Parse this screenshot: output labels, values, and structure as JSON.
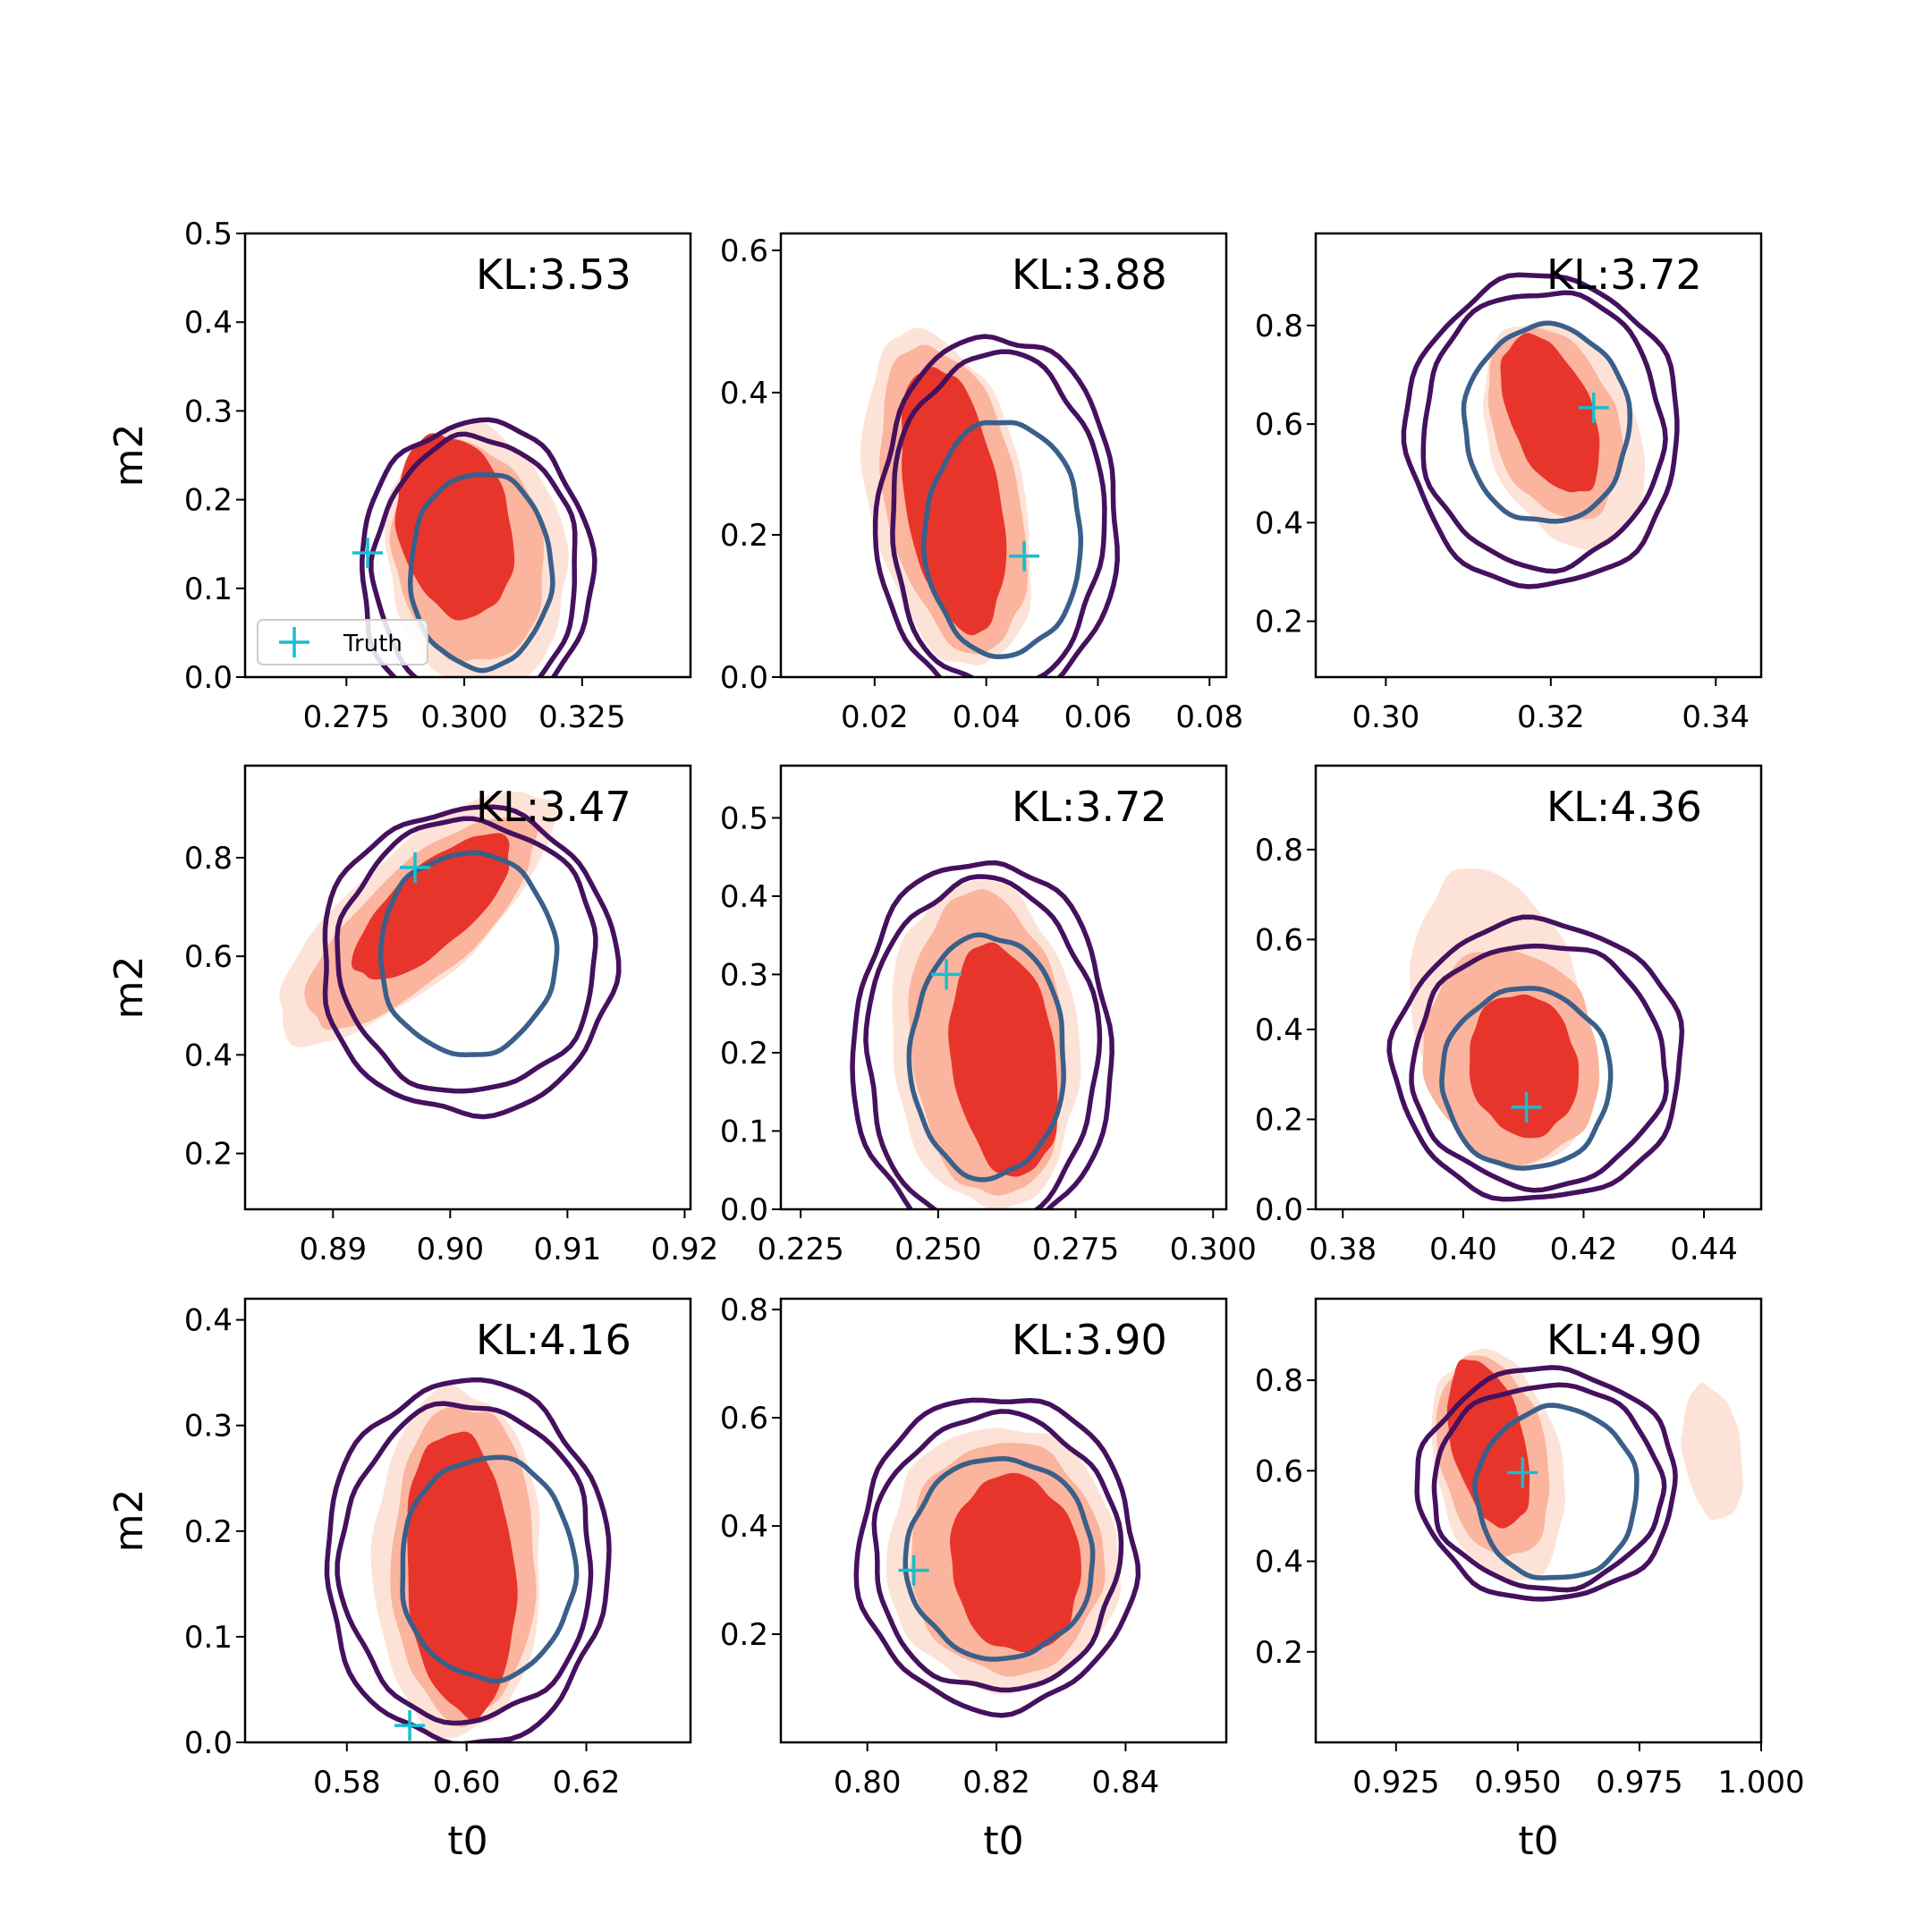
{
  "colors": {
    "fill_outer": "#fde3d7",
    "fill_middle": "#fbb49d",
    "fill_inner": "#e8352b",
    "contour_outer": "#45115e",
    "contour_inner": "#3a5f8a",
    "truth": "#17becf",
    "axes": "#000000"
  },
  "legend": {
    "label": "Truth",
    "icon": "plus-marker-icon"
  },
  "chart_data": [
    {
      "type": "contour",
      "kl": "KL:3.53",
      "xlabel": "",
      "ylabel": "m2",
      "xlim": [
        0.2535,
        0.348
      ],
      "ylim": [
        0.0,
        0.5
      ],
      "xticks": [
        {
          "v": 0.275,
          "t": "0.275"
        },
        {
          "v": 0.3,
          "t": "0.300"
        },
        {
          "v": 0.325,
          "t": "0.325"
        }
      ],
      "yticks": [
        {
          "v": 0.0,
          "t": "0.0"
        },
        {
          "v": 0.1,
          "t": "0.1"
        },
        {
          "v": 0.2,
          "t": "0.2"
        },
        {
          "v": 0.3,
          "t": "0.3"
        },
        {
          "v": 0.4,
          "t": "0.4"
        },
        {
          "v": 0.5,
          "t": "0.5"
        }
      ],
      "red": {
        "outer": {
          "cx": 0.3025,
          "cy": 0.135,
          "rx": 0.019,
          "ry": 0.15,
          "rot": -8
        },
        "middle": {
          "cx": 0.301,
          "cy": 0.14,
          "rx": 0.016,
          "ry": 0.125,
          "rot": -8
        },
        "inner": {
          "cx": 0.298,
          "cy": 0.17,
          "rx": 0.012,
          "ry": 0.105,
          "rot": -12
        }
      },
      "purple_outer": {
        "cx": 0.3025,
        "cy": 0.12,
        "rx": 0.0245,
        "ry": 0.168
      },
      "purple_middle": {
        "cx": 0.3025,
        "cy": 0.12,
        "rx": 0.0215,
        "ry": 0.15
      },
      "blue": {
        "cx": 0.3035,
        "cy": 0.12,
        "rx": 0.015,
        "ry": 0.11
      },
      "truth": {
        "x": 0.2795,
        "y": 0.14
      },
      "has_legend": true
    },
    {
      "type": "contour",
      "kl": "KL:3.88",
      "xlabel": "",
      "ylabel": "",
      "xlim": [
        0.0032,
        0.083
      ],
      "ylim": [
        0.0,
        0.6237
      ],
      "xticks": [
        {
          "v": 0.02,
          "t": "0.02"
        },
        {
          "v": 0.04,
          "t": "0.04"
        },
        {
          "v": 0.06,
          "t": "0.06"
        },
        {
          "v": 0.08,
          "t": "0.08"
        }
      ],
      "yticks": [
        {
          "v": 0.0,
          "t": "0.0"
        },
        {
          "v": 0.2,
          "t": "0.2"
        },
        {
          "v": 0.4,
          "t": "0.4"
        },
        {
          "v": 0.6,
          "t": "0.6"
        }
      ],
      "red": {
        "outer": {
          "cx": 0.033,
          "cy": 0.25,
          "rx": 0.014,
          "ry": 0.24,
          "rot": -12
        },
        "middle": {
          "cx": 0.034,
          "cy": 0.25,
          "rx": 0.012,
          "ry": 0.22,
          "rot": -12
        },
        "inner": {
          "cx": 0.034,
          "cy": 0.25,
          "rx": 0.0085,
          "ry": 0.19,
          "rot": -10
        }
      },
      "purple_outer": {
        "cx": 0.042,
        "cy": 0.22,
        "rx": 0.0215,
        "ry": 0.26
      },
      "purple_middle": {
        "cx": 0.042,
        "cy": 0.22,
        "rx": 0.019,
        "ry": 0.235
      },
      "blue": {
        "cx": 0.043,
        "cy": 0.195,
        "rx": 0.014,
        "ry": 0.165
      },
      "truth": {
        "x": 0.0468,
        "y": 0.17
      },
      "has_legend": false
    },
    {
      "type": "contour",
      "kl": "KL:3.72",
      "xlabel": "",
      "ylabel": "",
      "xlim": [
        0.2915,
        0.3455
      ],
      "ylim": [
        0.0867,
        0.9867
      ],
      "xticks": [
        {
          "v": 0.3,
          "t": "0.30"
        },
        {
          "v": 0.32,
          "t": "0.32"
        },
        {
          "v": 0.34,
          "t": "0.34"
        }
      ],
      "yticks": [
        {
          "v": 0.2,
          "t": "0.2"
        },
        {
          "v": 0.4,
          "t": "0.4"
        },
        {
          "v": 0.6,
          "t": "0.6"
        },
        {
          "v": 0.8,
          "t": "0.8"
        }
      ],
      "red": {
        "outer": {
          "cx": 0.3215,
          "cy": 0.58,
          "rx": 0.009,
          "ry": 0.24,
          "rot": -20
        },
        "middle": {
          "cx": 0.3205,
          "cy": 0.6,
          "rx": 0.0075,
          "ry": 0.2,
          "rot": -20
        },
        "inner": {
          "cx": 0.32,
          "cy": 0.62,
          "rx": 0.005,
          "ry": 0.17,
          "rot": -22
        }
      },
      "purple_outer": {
        "cx": 0.319,
        "cy": 0.585,
        "rx": 0.0165,
        "ry": 0.315
      },
      "purple_middle": {
        "cx": 0.319,
        "cy": 0.59,
        "rx": 0.0145,
        "ry": 0.28
      },
      "blue": {
        "cx": 0.3195,
        "cy": 0.6,
        "rx": 0.01,
        "ry": 0.2
      },
      "truth": {
        "x": 0.3252,
        "y": 0.633
      },
      "has_legend": false
    },
    {
      "type": "contour",
      "kl": "KL:3.47",
      "xlabel": "",
      "ylabel": "m2",
      "xlim": [
        0.8825,
        0.9205
      ],
      "ylim": [
        0.0867,
        0.9867
      ],
      "xticks": [
        {
          "v": 0.89,
          "t": "0.89"
        },
        {
          "v": 0.9,
          "t": "0.90"
        },
        {
          "v": 0.91,
          "t": "0.91"
        },
        {
          "v": 0.92,
          "t": "0.92"
        }
      ],
      "yticks": [
        {
          "v": 0.2,
          "t": "0.2"
        },
        {
          "v": 0.4,
          "t": "0.4"
        },
        {
          "v": 0.6,
          "t": "0.6"
        },
        {
          "v": 0.8,
          "t": "0.8"
        }
      ],
      "red": {
        "outer": {
          "cx": 0.897,
          "cy": 0.68,
          "rx": 0.015,
          "ry": 0.13,
          "rot": -42
        },
        "middle": {
          "cx": 0.8975,
          "cy": 0.67,
          "rx": 0.0125,
          "ry": 0.11,
          "rot": -42
        },
        "inner": {
          "cx": 0.8985,
          "cy": 0.7,
          "rx": 0.0085,
          "ry": 0.08,
          "rot": -42
        }
      },
      "purple_outer": {
        "cx": 0.9015,
        "cy": 0.59,
        "rx": 0.0125,
        "ry": 0.31
      },
      "purple_middle": {
        "cx": 0.9015,
        "cy": 0.6,
        "rx": 0.011,
        "ry": 0.275
      },
      "blue": {
        "cx": 0.9015,
        "cy": 0.605,
        "rx": 0.0075,
        "ry": 0.205
      },
      "truth": {
        "x": 0.897,
        "y": 0.78
      },
      "has_legend": false
    },
    {
      "type": "contour",
      "kl": "KL:3.72",
      "xlabel": "",
      "ylabel": "",
      "xlim": [
        0.2214,
        0.3024
      ],
      "ylim": [
        0.0,
        0.5667
      ],
      "xticks": [
        {
          "v": 0.225,
          "t": "0.225"
        },
        {
          "v": 0.25,
          "t": "0.250"
        },
        {
          "v": 0.275,
          "t": "0.275"
        },
        {
          "v": 0.3,
          "t": "0.300"
        }
      ],
      "yticks": [
        {
          "v": 0.0,
          "t": "0.0"
        },
        {
          "v": 0.1,
          "t": "0.1"
        },
        {
          "v": 0.2,
          "t": "0.2"
        },
        {
          "v": 0.3,
          "t": "0.3"
        },
        {
          "v": 0.4,
          "t": "0.4"
        },
        {
          "v": 0.5,
          "t": "0.5"
        }
      ],
      "red": {
        "outer": {
          "cx": 0.2585,
          "cy": 0.21,
          "rx": 0.017,
          "ry": 0.21,
          "rot": -5
        },
        "middle": {
          "cx": 0.259,
          "cy": 0.21,
          "rx": 0.014,
          "ry": 0.195,
          "rot": -5
        },
        "inner": {
          "cx": 0.262,
          "cy": 0.19,
          "rx": 0.0095,
          "ry": 0.15,
          "rot": -8
        }
      },
      "purple_outer": {
        "cx": 0.258,
        "cy": 0.2,
        "rx": 0.0235,
        "ry": 0.245
      },
      "purple_middle": {
        "cx": 0.258,
        "cy": 0.2,
        "rx": 0.021,
        "ry": 0.22
      },
      "blue": {
        "cx": 0.259,
        "cy": 0.195,
        "rx": 0.014,
        "ry": 0.155
      },
      "truth": {
        "x": 0.2515,
        "y": 0.3
      },
      "has_legend": false
    },
    {
      "type": "contour",
      "kl": "KL:4.36",
      "xlabel": "",
      "ylabel": "",
      "xlim": [
        0.3755,
        0.4495
      ],
      "ylim": [
        0.0,
        0.9867
      ],
      "xticks": [
        {
          "v": 0.38,
          "t": "0.38"
        },
        {
          "v": 0.4,
          "t": "0.40"
        },
        {
          "v": 0.42,
          "t": "0.42"
        },
        {
          "v": 0.44,
          "t": "0.44"
        }
      ],
      "yticks": [
        {
          "v": 0.0,
          "t": "0.0"
        },
        {
          "v": 0.2,
          "t": "0.2"
        },
        {
          "v": 0.4,
          "t": "0.4"
        },
        {
          "v": 0.6,
          "t": "0.6"
        },
        {
          "v": 0.8,
          "t": "0.8"
        }
      ],
      "red": {
        "outer": {
          "cx": 0.406,
          "cy": 0.42,
          "rx": 0.014,
          "ry": 0.34,
          "rot": -12
        },
        "middle": {
          "cx": 0.408,
          "cy": 0.34,
          "rx": 0.0145,
          "ry": 0.24,
          "rot": -12
        },
        "inner": {
          "cx": 0.41,
          "cy": 0.32,
          "rx": 0.009,
          "ry": 0.16,
          "rot": -10
        }
      },
      "purple_outer": {
        "cx": 0.4125,
        "cy": 0.33,
        "rx": 0.024,
        "ry": 0.31
      },
      "purple_middle": {
        "cx": 0.4125,
        "cy": 0.32,
        "rx": 0.021,
        "ry": 0.27
      },
      "blue": {
        "cx": 0.4105,
        "cy": 0.29,
        "rx": 0.014,
        "ry": 0.2
      },
      "truth": {
        "x": 0.4105,
        "y": 0.227
      },
      "has_legend": false
    },
    {
      "type": "contour",
      "kl": "KL:4.16",
      "xlabel": "t0",
      "ylabel": "m2",
      "xlim": [
        0.563,
        0.6374
      ],
      "ylim": [
        0.0,
        0.42
      ],
      "xticks": [
        {
          "v": 0.58,
          "t": "0.58"
        },
        {
          "v": 0.6,
          "t": "0.60"
        },
        {
          "v": 0.62,
          "t": "0.62"
        }
      ],
      "yticks": [
        {
          "v": 0.0,
          "t": "0.0"
        },
        {
          "v": 0.1,
          "t": "0.1"
        },
        {
          "v": 0.2,
          "t": "0.2"
        },
        {
          "v": 0.3,
          "t": "0.3"
        },
        {
          "v": 0.4,
          "t": "0.4"
        }
      ],
      "red": {
        "outer": {
          "cx": 0.5985,
          "cy": 0.17,
          "rx": 0.014,
          "ry": 0.165,
          "rot": 0
        },
        "middle": {
          "cx": 0.5995,
          "cy": 0.17,
          "rx": 0.012,
          "ry": 0.15,
          "rot": 0
        },
        "inner": {
          "cx": 0.599,
          "cy": 0.16,
          "rx": 0.009,
          "ry": 0.135,
          "rot": -4
        }
      },
      "purple_outer": {
        "cx": 0.6,
        "cy": 0.17,
        "rx": 0.0235,
        "ry": 0.172
      },
      "purple_middle": {
        "cx": 0.6,
        "cy": 0.17,
        "rx": 0.021,
        "ry": 0.15
      },
      "blue": {
        "cx": 0.6035,
        "cy": 0.165,
        "rx": 0.0145,
        "ry": 0.105
      },
      "truth": {
        "x": 0.5905,
        "y": 0.016
      },
      "has_legend": false
    },
    {
      "type": "contour",
      "kl": "KL:3.90",
      "xlabel": "t0",
      "ylabel": "",
      "xlim": [
        0.7866,
        0.8556
      ],
      "ylim": [
        0.0,
        0.82
      ],
      "xticks": [
        {
          "v": 0.8,
          "t": "0.80"
        },
        {
          "v": 0.82,
          "t": "0.82"
        },
        {
          "v": 0.84,
          "t": "0.84"
        }
      ],
      "yticks": [
        {
          "v": 0.2,
          "t": "0.2"
        },
        {
          "v": 0.4,
          "t": "0.4"
        },
        {
          "v": 0.6,
          "t": "0.6"
        },
        {
          "v": 0.8,
          "t": "0.8"
        }
      ],
      "red": {
        "outer": {
          "cx": 0.821,
          "cy": 0.34,
          "rx": 0.018,
          "ry": 0.245,
          "rot": -5
        },
        "middle": {
          "cx": 0.8215,
          "cy": 0.34,
          "rx": 0.015,
          "ry": 0.215,
          "rot": -5
        },
        "inner": {
          "cx": 0.823,
          "cy": 0.33,
          "rx": 0.01,
          "ry": 0.165,
          "rot": -8
        }
      },
      "purple_outer": {
        "cx": 0.82,
        "cy": 0.35,
        "rx": 0.0215,
        "ry": 0.29
      },
      "purple_middle": {
        "cx": 0.82,
        "cy": 0.35,
        "rx": 0.019,
        "ry": 0.255
      },
      "blue": {
        "cx": 0.8205,
        "cy": 0.34,
        "rx": 0.0145,
        "ry": 0.185
      },
      "truth": {
        "x": 0.8072,
        "y": 0.318
      },
      "has_legend": false
    },
    {
      "type": "contour",
      "kl": "KL:4.90",
      "xlabel": "t0",
      "ylabel": "",
      "xlim": [
        0.9085,
        1.0
      ],
      "ylim": [
        0.0,
        0.98
      ],
      "xticks": [
        {
          "v": 0.925,
          "t": "0.925"
        },
        {
          "v": 0.95,
          "t": "0.950"
        },
        {
          "v": 0.975,
          "t": "0.975"
        },
        {
          "v": 1.0,
          "t": "1.000"
        }
      ],
      "yticks": [
        {
          "v": 0.2,
          "t": "0.2"
        },
        {
          "v": 0.4,
          "t": "0.4"
        },
        {
          "v": 0.6,
          "t": "0.6"
        },
        {
          "v": 0.8,
          "t": "0.8"
        }
      ],
      "red": {
        "outer": {
          "cx": 0.946,
          "cy": 0.61,
          "rx": 0.013,
          "ry": 0.26,
          "rot": -12
        },
        "middle": {
          "cx": 0.945,
          "cy": 0.63,
          "rx": 0.011,
          "ry": 0.225,
          "rot": -12
        },
        "inner": {
          "cx": 0.944,
          "cy": 0.66,
          "rx": 0.0075,
          "ry": 0.19,
          "rot": -14
        },
        "extra": {
          "cx": 0.99,
          "cy": 0.64,
          "rx": 0.006,
          "ry": 0.15,
          "rot": -8
        }
      },
      "purple_outer": {
        "cx": 0.956,
        "cy": 0.57,
        "rx": 0.0265,
        "ry": 0.255
      },
      "purple_middle": {
        "cx": 0.956,
        "cy": 0.565,
        "rx": 0.0235,
        "ry": 0.225
      },
      "blue": {
        "cx": 0.958,
        "cy": 0.55,
        "rx": 0.0165,
        "ry": 0.19
      },
      "truth": {
        "x": 0.951,
        "y": 0.596
      },
      "has_legend": false
    }
  ]
}
